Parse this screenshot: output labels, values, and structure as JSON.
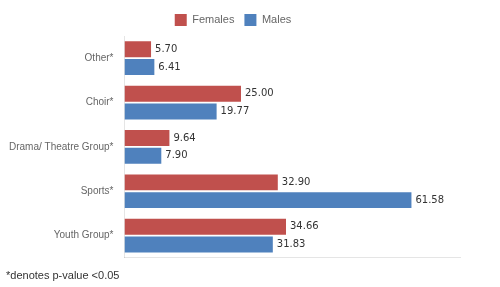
{
  "chart_data": {
    "type": "bar",
    "orientation": "horizontal",
    "categories": [
      "Youth Group*",
      "Sports*",
      "Drama/ Theatre Group*",
      "Choir*",
      "Other*"
    ],
    "series": [
      {
        "name": "Females",
        "color": "#c0504d",
        "values": [
          34.66,
          32.9,
          9.64,
          25.0,
          5.7
        ],
        "value_labels": [
          "34.66",
          "32.90",
          "9.64",
          "25.00",
          "5.70"
        ]
      },
      {
        "name": "Males",
        "color": "#4f81bd",
        "values": [
          31.83,
          61.58,
          7.9,
          19.77,
          6.41
        ],
        "value_labels": [
          "31.83",
          "61.58",
          "7.90",
          "19.77",
          "6.41"
        ]
      }
    ],
    "xlim": [
      0,
      72
    ],
    "tick_labels": "y",
    "grid": false,
    "legend": "top",
    "data_labels": true,
    "annotations": [
      "*denotes p-value <0.05"
    ]
  }
}
